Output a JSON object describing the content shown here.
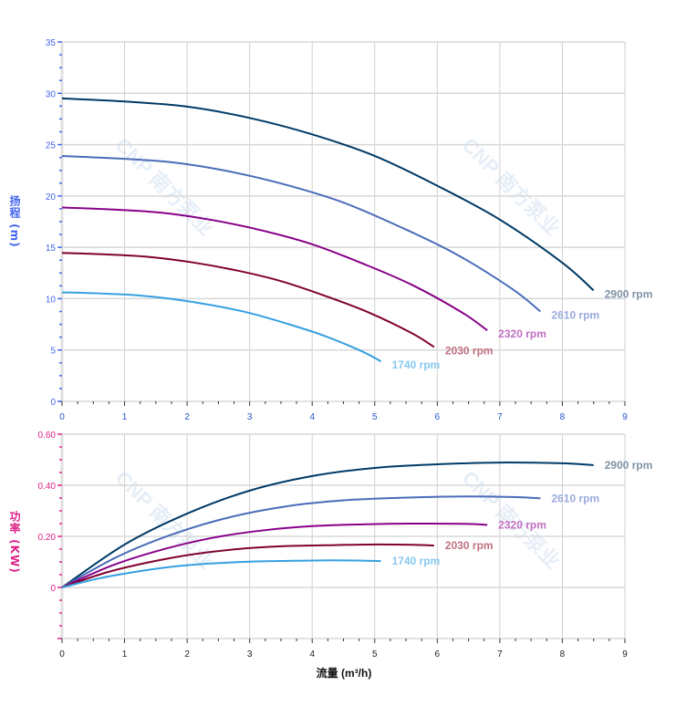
{
  "watermark": "CNP 南方泵业",
  "chart_data": [
    {
      "type": "line",
      "ylabel": "扬程 (m)",
      "xlim": [
        0,
        9
      ],
      "ylim": [
        0,
        35
      ],
      "xticks": [
        "0",
        "1",
        "2",
        "3",
        "4",
        "5",
        "6",
        "7",
        "8",
        "9"
      ],
      "yticks": [
        "0",
        "5",
        "10",
        "15",
        "20",
        "25",
        "30",
        "35"
      ],
      "grid": true,
      "axis_color": "#4466ee",
      "series": [
        {
          "name": "2900 rpm",
          "color": "#003a66",
          "label_color": "#7f93a6",
          "x": [
            0,
            1,
            2,
            3,
            4,
            5,
            6,
            7,
            8,
            8.5
          ],
          "y": [
            29.5,
            29.2,
            28.7,
            27.6,
            26.0,
            23.9,
            21.0,
            17.7,
            13.5,
            10.8
          ]
        },
        {
          "name": "2610 rpm",
          "color": "#4a6cb8",
          "label_color": "#99aadd",
          "x": [
            0,
            0.9,
            1.8,
            2.7,
            3.6,
            4.5,
            5.4,
            6.3,
            7.2,
            7.65
          ],
          "y": [
            23.9,
            23.65,
            23.25,
            22.36,
            21.06,
            19.36,
            17.01,
            14.34,
            10.94,
            8.75
          ]
        },
        {
          "name": "2320 rpm",
          "color": "#880088",
          "label_color": "#c070c0",
          "x": [
            0,
            0.8,
            1.6,
            2.4,
            3.2,
            4.0,
            4.8,
            5.6,
            6.4,
            6.8
          ],
          "y": [
            18.88,
            18.69,
            18.37,
            17.66,
            16.64,
            15.3,
            13.44,
            11.33,
            8.64,
            6.91
          ]
        },
        {
          "name": "2030 rpm",
          "color": "#800030",
          "label_color": "#c07080",
          "x": [
            0,
            0.7,
            1.4,
            2.1,
            2.8,
            3.5,
            4.2,
            4.9,
            5.6,
            5.95
          ],
          "y": [
            14.46,
            14.31,
            14.06,
            13.52,
            12.74,
            11.71,
            10.29,
            8.67,
            6.62,
            5.29
          ]
        },
        {
          "name": "1740 rpm",
          "color": "#36a0e0",
          "label_color": "#88c8f0",
          "x": [
            0,
            0.6,
            1.2,
            1.8,
            2.4,
            3.0,
            3.6,
            4.2,
            4.8,
            5.1
          ],
          "y": [
            10.62,
            10.51,
            10.33,
            9.94,
            9.36,
            8.6,
            7.56,
            6.37,
            4.86,
            3.89
          ]
        }
      ]
    },
    {
      "type": "line",
      "xlabel": "流量 (m³/h)",
      "ylabel": "功率 (KW)",
      "xlim": [
        0,
        9
      ],
      "ylim": [
        -0.2,
        0.6
      ],
      "xticks": [
        "0",
        "1",
        "2",
        "3",
        "4",
        "5",
        "6",
        "7",
        "8",
        "9"
      ],
      "yticks": [
        "0",
        "0.20",
        "0.40",
        "0.60"
      ],
      "grid": true,
      "axis_color": "#dd2288",
      "series": [
        {
          "name": "2900 rpm",
          "color": "#003a66",
          "label_color": "#7f93a6",
          "x": [
            0,
            1,
            2,
            3,
            4,
            5,
            6,
            7,
            8,
            8.5
          ],
          "y": [
            0,
            0.168,
            0.289,
            0.379,
            0.436,
            0.468,
            0.482,
            0.489,
            0.486,
            0.479
          ]
        },
        {
          "name": "2610 rpm",
          "color": "#4a6cb8",
          "label_color": "#99aadd",
          "x": [
            0,
            0.9,
            1.8,
            2.7,
            3.6,
            4.5,
            5.4,
            6.3,
            7.2,
            7.65
          ],
          "y": [
            0,
            0.122,
            0.211,
            0.276,
            0.318,
            0.341,
            0.351,
            0.356,
            0.354,
            0.349
          ]
        },
        {
          "name": "2320 rpm",
          "color": "#880088",
          "label_color": "#c070c0",
          "x": [
            0,
            0.8,
            1.6,
            2.4,
            3.2,
            4.0,
            4.8,
            5.6,
            6.4,
            6.8
          ],
          "y": [
            0,
            0.086,
            0.148,
            0.194,
            0.223,
            0.24,
            0.247,
            0.25,
            0.249,
            0.245
          ]
        },
        {
          "name": "2030 rpm",
          "color": "#800030",
          "label_color": "#c07080",
          "x": [
            0,
            0.7,
            1.4,
            2.1,
            2.8,
            3.5,
            4.2,
            4.9,
            5.6,
            5.95
          ],
          "y": [
            0,
            0.058,
            0.099,
            0.13,
            0.15,
            0.161,
            0.165,
            0.168,
            0.167,
            0.164
          ]
        },
        {
          "name": "1740 rpm",
          "color": "#36a0e0",
          "label_color": "#88c8f0",
          "x": [
            0,
            0.6,
            1.2,
            1.8,
            2.4,
            3.0,
            3.6,
            4.2,
            4.8,
            5.1
          ],
          "y": [
            0,
            0.036,
            0.062,
            0.082,
            0.094,
            0.101,
            0.104,
            0.106,
            0.105,
            0.103
          ]
        }
      ]
    }
  ]
}
